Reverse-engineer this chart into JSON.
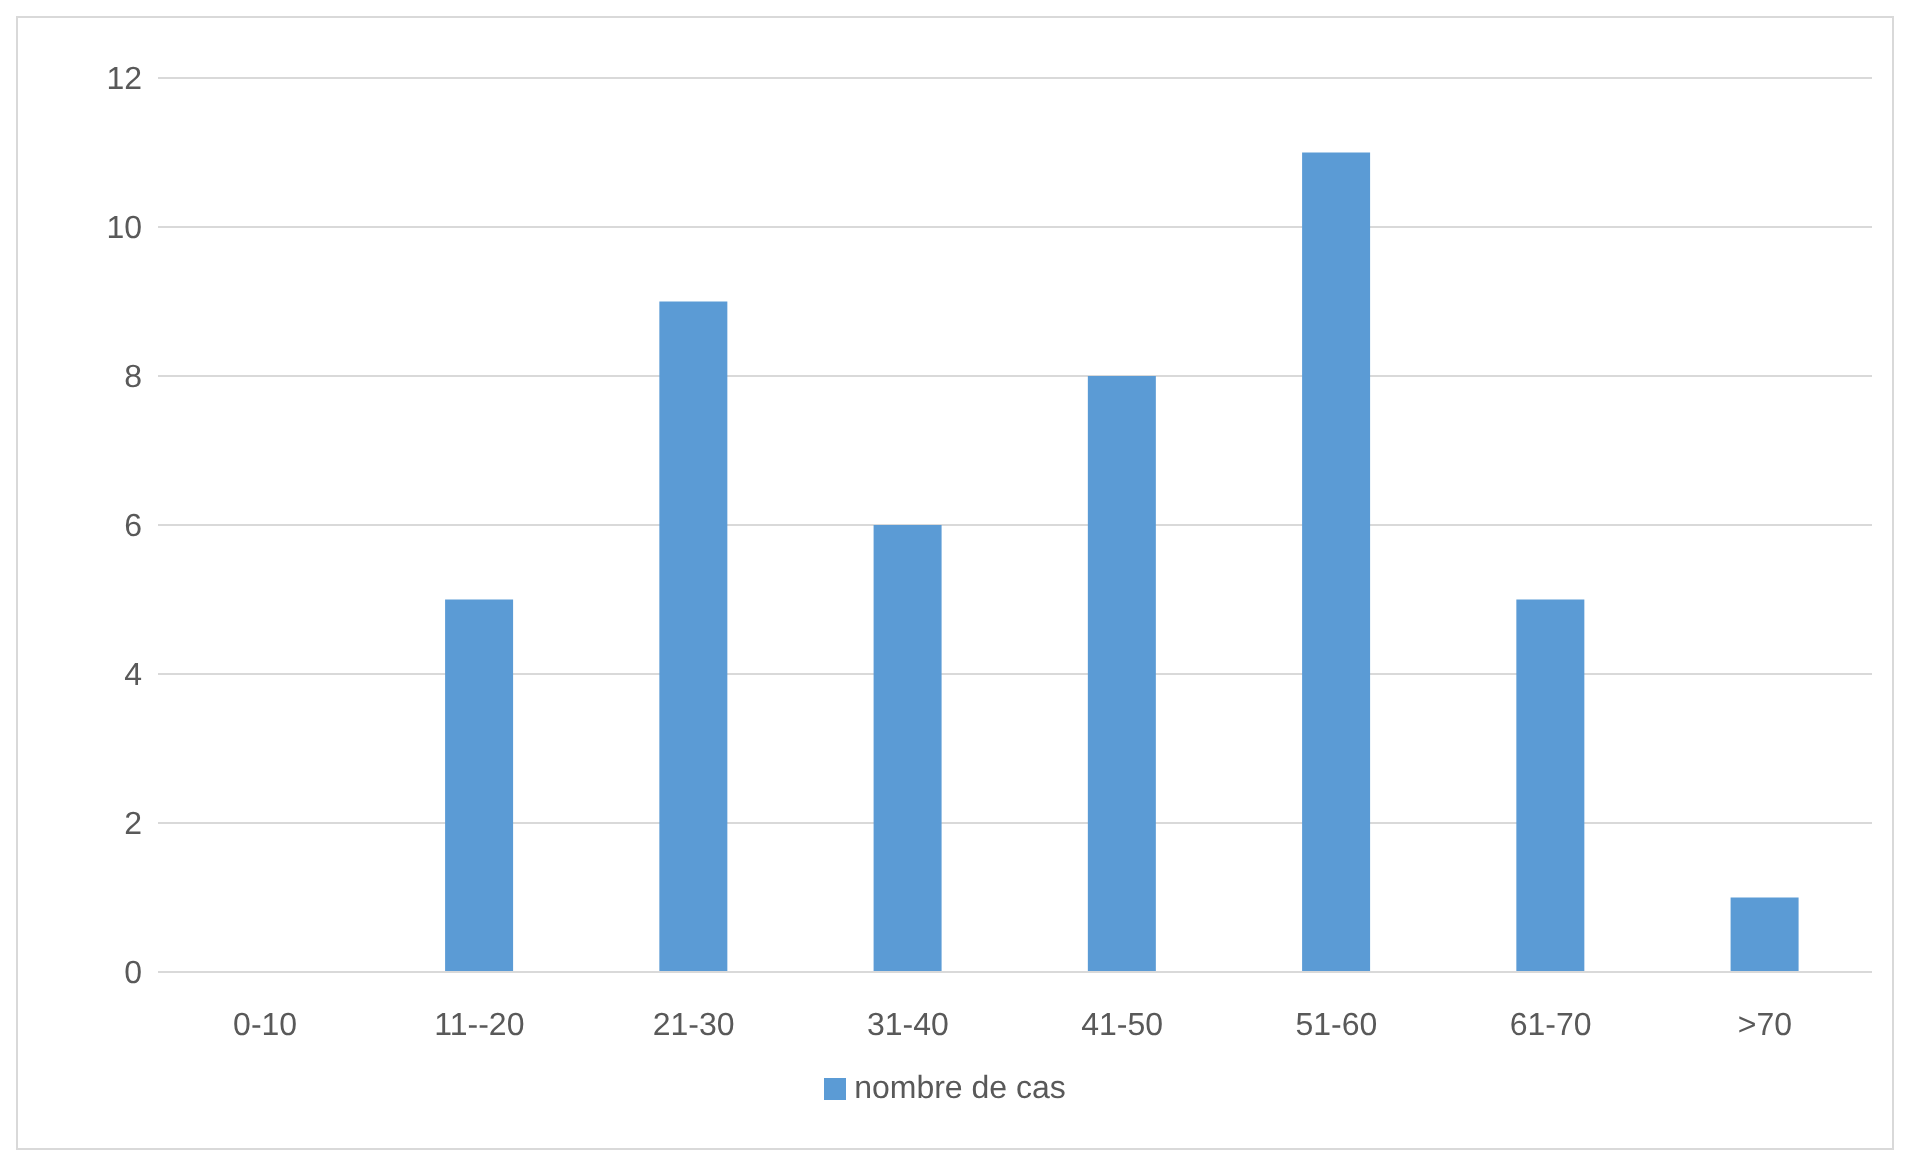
{
  "chart_data": {
    "type": "bar",
    "categories": [
      "0-10",
      "11--20",
      "21-30",
      "31-40",
      "41-50",
      "51-60",
      "61-70",
      ">70"
    ],
    "series": [
      {
        "name": "nombre de cas",
        "color": "#5b9bd5",
        "values": [
          0,
          5,
          9,
          6,
          8,
          11,
          5,
          1
        ]
      }
    ],
    "ylim": [
      0,
      12
    ],
    "yticks": [
      0,
      2,
      4,
      6,
      8,
      10,
      12
    ],
    "grid": "y",
    "legend": "bottom"
  }
}
